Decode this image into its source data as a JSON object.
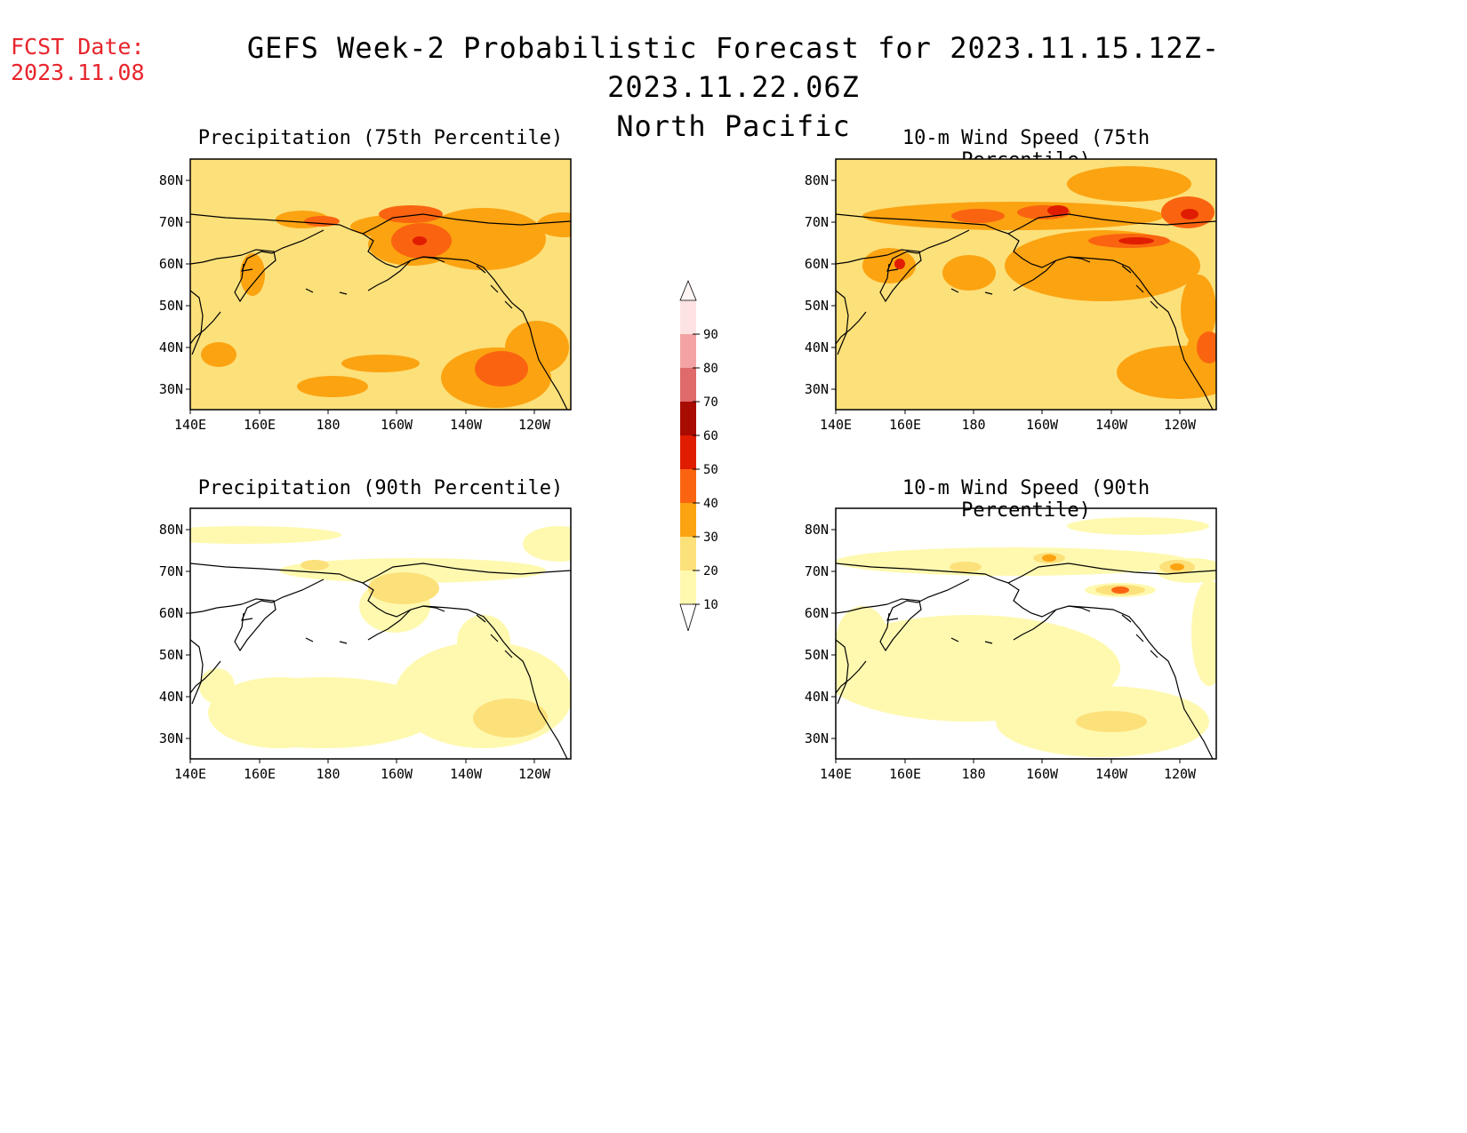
{
  "header": {
    "fcst_label": "FCST Date:",
    "fcst_date": "2023.11.08",
    "title_line1": "GEFS Week-2 Probabilistic Forecast for 2023.11.15.12Z-2023.11.22.06Z",
    "title_line2": "North Pacific"
  },
  "panels": [
    {
      "title": "Precipitation (75th Percentile)"
    },
    {
      "title": "10-m Wind Speed (75th Percentile)"
    },
    {
      "title": "Precipitation (90th Percentile)"
    },
    {
      "title": "10-m Wind Speed (90th Percentile)"
    }
  ],
  "axes": {
    "lat_labels": [
      "80N",
      "70N",
      "60N",
      "50N",
      "40N",
      "30N"
    ],
    "lon_labels": [
      "140E",
      "160E",
      "180",
      "160W",
      "140W",
      "120W"
    ]
  },
  "colorbar": {
    "levels": [
      "10",
      "20",
      "30",
      "40",
      "50",
      "60",
      "70",
      "80",
      "90"
    ],
    "colors": [
      "#fff9b0",
      "#fce07a",
      "#fca311",
      "#fa6410",
      "#e01d00",
      "#a80b00",
      "#de6a6a",
      "#f3a3a3",
      "#fde3e3"
    ]
  },
  "colors": {
    "land_outline": "#000000",
    "base_fill": "#fce07a",
    "fcst_text": "#e8242c"
  }
}
